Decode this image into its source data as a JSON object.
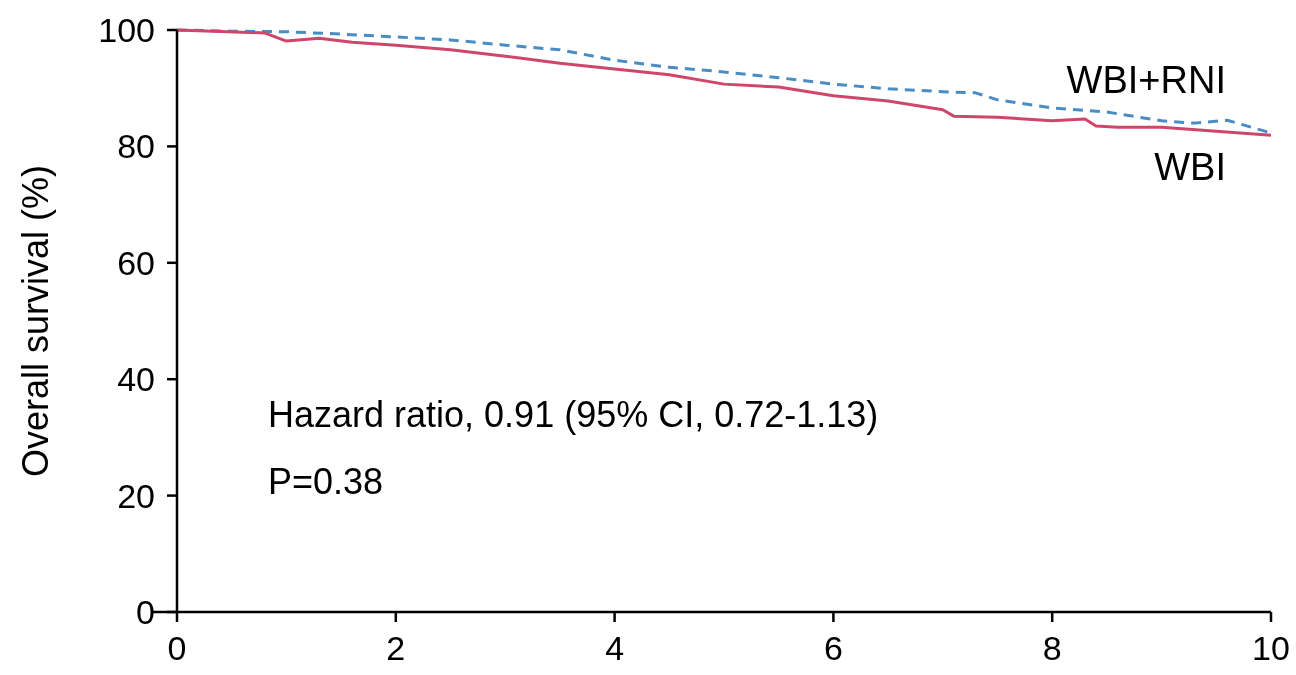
{
  "chart_data": {
    "type": "line",
    "ylabel": "Overall survival (%)",
    "xlim": [
      0,
      10
    ],
    "xticks": [
      0,
      2,
      4,
      6,
      8,
      10
    ],
    "ylim": [
      0,
      100
    ],
    "yticks": [
      0,
      20,
      40,
      60,
      80,
      100
    ],
    "grid": false,
    "marker": "none",
    "series": [
      {
        "name": "WBI+RNI",
        "color": "#4a8cc4",
        "line_style": "dashed",
        "x": [
          0,
          0.5,
          1,
          1.5,
          2,
          2.5,
          3,
          3.5,
          4,
          4.5,
          5,
          5.5,
          6,
          6.5,
          7,
          7.3,
          7.5,
          8,
          8.5,
          9,
          9.3,
          9.6,
          10
        ],
        "values": [
          100,
          99.8,
          99.7,
          99.3,
          98.8,
          98.3,
          97.4,
          96.6,
          94.8,
          93.6,
          92.8,
          91.8,
          90.7,
          89.9,
          89.4,
          89.2,
          88,
          86.6,
          85.9,
          84.4,
          84,
          84.5,
          82.3
        ]
      },
      {
        "name": "WBI",
        "color": "#d0466a",
        "line_style": "solid",
        "x": [
          0,
          0.8,
          1,
          1.3,
          1.6,
          2,
          2.5,
          3,
          3.5,
          4,
          4.5,
          5,
          5.5,
          6,
          6.5,
          7,
          7.1,
          7.5,
          8,
          8.3,
          8.4,
          8.6,
          9,
          9.5,
          10
        ],
        "values": [
          100,
          99.5,
          98.1,
          98.6,
          97.9,
          97.4,
          96.6,
          95.5,
          94.3,
          93.3,
          92.3,
          90.7,
          90.2,
          88.7,
          87.8,
          86.3,
          85.2,
          85,
          84.4,
          84.7,
          83.5,
          83.3,
          83.3,
          82.6,
          81.9
        ]
      }
    ],
    "annotations": [
      "Hazard ratio, 0.91 (95% CI, 0.72-1.13)",
      "P=0.38"
    ]
  }
}
